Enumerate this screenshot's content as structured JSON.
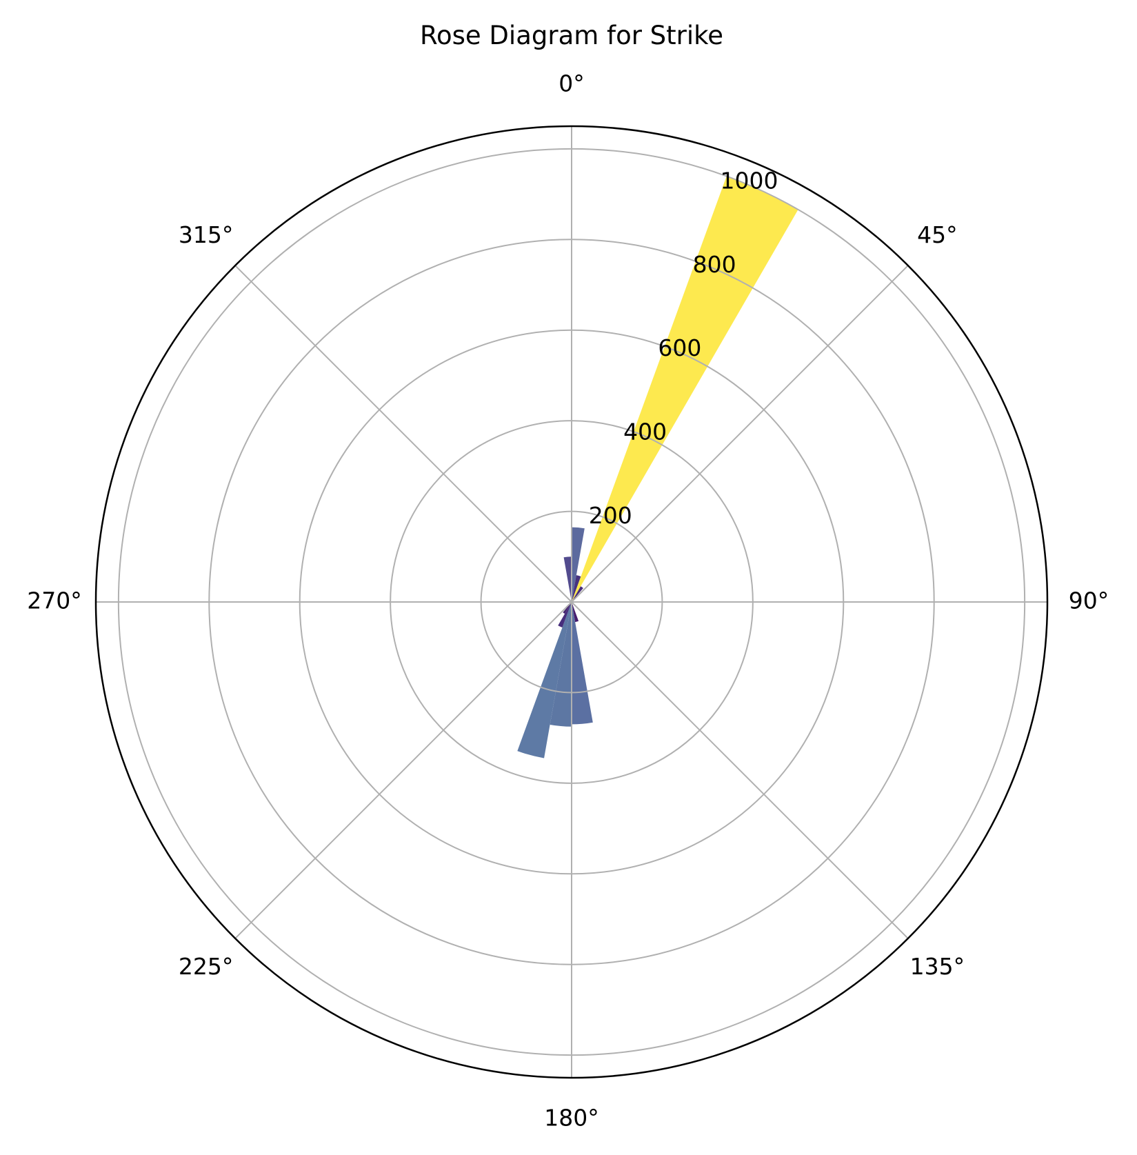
{
  "chart_data": {
    "type": "polar-bar",
    "title": "Rose Diagram for Strike",
    "theta_zero_location": "N",
    "theta_direction": "clockwise",
    "grid": true,
    "theta_ticks": [
      {
        "value": 0,
        "label": "0°"
      },
      {
        "value": 45,
        "label": "45°"
      },
      {
        "value": 90,
        "label": "90°"
      },
      {
        "value": 135,
        "label": "135°"
      },
      {
        "value": 180,
        "label": "180°"
      },
      {
        "value": 225,
        "label": "225°"
      },
      {
        "value": 270,
        "label": "270°"
      },
      {
        "value": 315,
        "label": "315°"
      }
    ],
    "r_ticks": [
      {
        "value": 200,
        "label": "200"
      },
      {
        "value": 400,
        "label": "400"
      },
      {
        "value": 600,
        "label": "600"
      },
      {
        "value": 800,
        "label": "800"
      },
      {
        "value": 1000,
        "label": "1000"
      }
    ],
    "rlim": [
      0,
      1050
    ],
    "r_label_angle": 22.5,
    "bin_width_deg": 10,
    "bins": [
      {
        "start": 0,
        "end": 10,
        "value": 165,
        "color": "#5c6a9e"
      },
      {
        "start": 10,
        "end": 20,
        "value": 60,
        "color": "#46327e"
      },
      {
        "start": 20,
        "end": 30,
        "value": 1000,
        "color": "#fde94f"
      },
      {
        "start": 30,
        "end": 40,
        "value": 40,
        "color": "#472d7b"
      },
      {
        "start": 160,
        "end": 170,
        "value": 45,
        "color": "#471c6e"
      },
      {
        "start": 170,
        "end": 180,
        "value": 270,
        "color": "#5b70a2"
      },
      {
        "start": 180,
        "end": 190,
        "value": 275,
        "color": "#5d77a3"
      },
      {
        "start": 190,
        "end": 200,
        "value": 350,
        "color": "#5e7aa5"
      },
      {
        "start": 200,
        "end": 210,
        "value": 60,
        "color": "#472e7c"
      },
      {
        "start": 210,
        "end": 220,
        "value": 30,
        "color": "#46256f"
      },
      {
        "start": 220,
        "end": 230,
        "value": 15,
        "color": "#460f62"
      },
      {
        "start": 340,
        "end": 350,
        "value": 5,
        "color": "#440d5f"
      },
      {
        "start": 350,
        "end": 360,
        "value": 100,
        "color": "#524b8e"
      }
    ],
    "bins_fix_note": ""
  }
}
